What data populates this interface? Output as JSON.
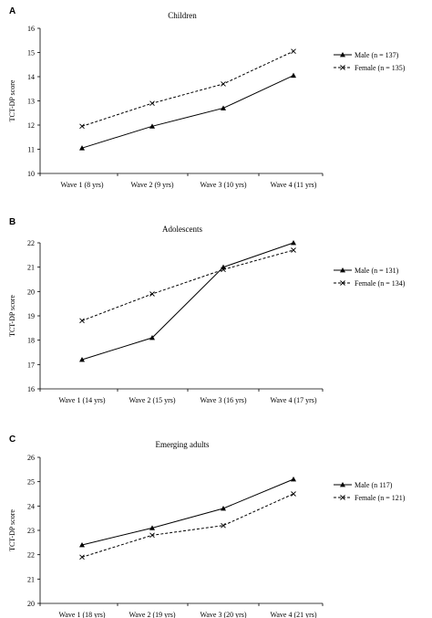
{
  "chart_data": [
    {
      "type": "line",
      "panel": "A",
      "title": "Children",
      "ylabel": "TCT-DP score",
      "xlabel": "",
      "ylim": [
        10,
        16
      ],
      "yticks": [
        10,
        11,
        12,
        13,
        14,
        15,
        16
      ],
      "categories": [
        "Wave 1 (8 yrs)",
        "Wave 2 (9 yrs)",
        "Wave 3 (10 yrs)",
        "Wave 4 (11 yrs)"
      ],
      "series": [
        {
          "name": "Male (n = 137)",
          "marker": "triangle",
          "dash": "solid",
          "values": [
            11.05,
            11.95,
            12.7,
            14.05
          ]
        },
        {
          "name": "Female (n = 135)",
          "marker": "x",
          "dash": "dashed",
          "values": [
            11.95,
            12.9,
            13.7,
            15.05
          ]
        }
      ],
      "legend": "right",
      "grid": false
    },
    {
      "type": "line",
      "panel": "B",
      "title": "Adolescents",
      "ylabel": "TCT-DP score",
      "xlabel": "",
      "ylim": [
        16,
        22
      ],
      "yticks": [
        16,
        17,
        18,
        19,
        20,
        21,
        22
      ],
      "categories": [
        "Wave 1 (14 yrs)",
        "Wave 2 (15 yrs)",
        "Wave 3 (16 yrs)",
        "Wave 4 (17 yrs)"
      ],
      "series": [
        {
          "name": "Male (n = 131)",
          "marker": "triangle",
          "dash": "solid",
          "values": [
            17.2,
            18.1,
            21.0,
            22.0
          ]
        },
        {
          "name": "Female (n = 134)",
          "marker": "x",
          "dash": "dashed",
          "values": [
            18.8,
            19.9,
            20.9,
            21.7
          ]
        }
      ],
      "legend": "right",
      "grid": false
    },
    {
      "type": "line",
      "panel": "C",
      "title": "Emerging adults",
      "ylabel": "TCT-DP score",
      "xlabel": "",
      "ylim": [
        20,
        26
      ],
      "yticks": [
        20,
        21,
        22,
        23,
        24,
        25,
        26
      ],
      "categories": [
        "Wave 1 (18 yrs)",
        "Wave 2 (19 yrs)",
        "Wave 3 (20 yrs)",
        "Wave 4 (21 yrs)"
      ],
      "series": [
        {
          "name": "Male (n    117)",
          "marker": "triangle",
          "dash": "solid",
          "values": [
            22.4,
            23.1,
            23.9,
            25.1
          ]
        },
        {
          "name": "Female (n = 121)",
          "marker": "x",
          "dash": "dashed",
          "values": [
            21.9,
            22.8,
            23.2,
            24.5
          ]
        }
      ],
      "legend": "right",
      "grid": false
    }
  ]
}
